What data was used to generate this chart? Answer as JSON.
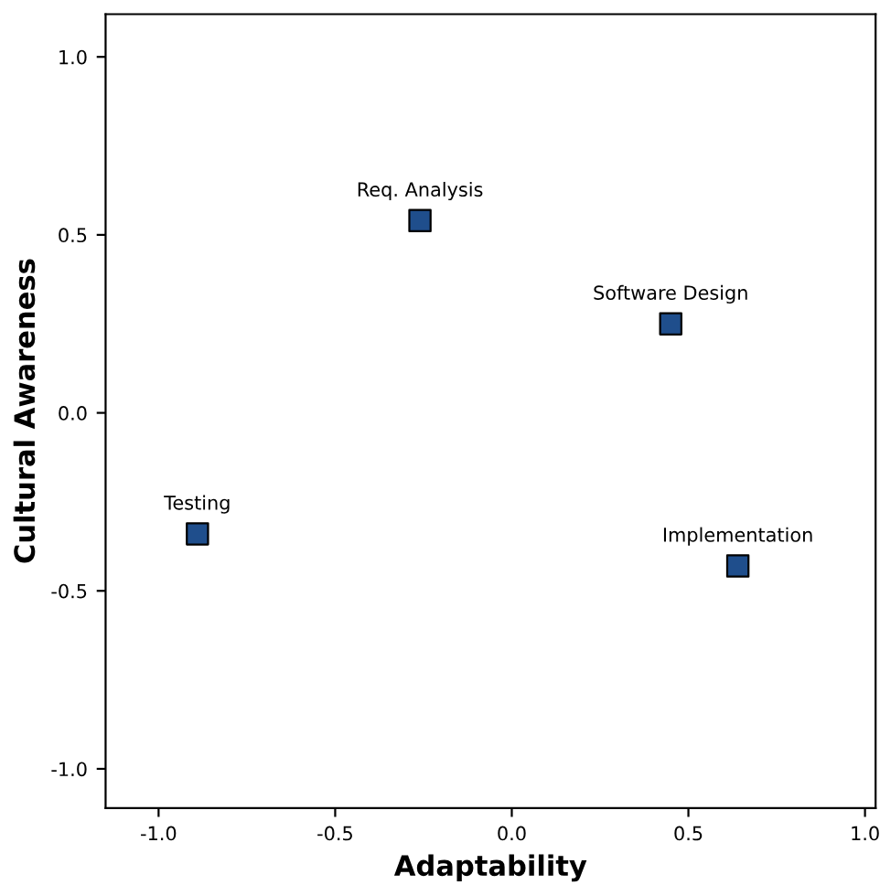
{
  "chart_data": {
    "type": "scatter",
    "xlabel": "Adaptability",
    "ylabel": "Cultural Awareness",
    "x": [
      -0.26,
      0.45,
      -0.89,
      0.64
    ],
    "series": [
      {
        "color": "#1f4e8c",
        "values": [
          0.54,
          0.25,
          -0.34,
          -0.43
        ]
      }
    ],
    "annotations": [
      {
        "text": "Req. Analysis",
        "x": -0.26,
        "y": 0.54
      },
      {
        "text": "Software Design",
        "x": 0.45,
        "y": 0.25
      },
      {
        "text": "Testing",
        "x": -0.89,
        "y": -0.34
      },
      {
        "text": "Implementation",
        "x": 0.64,
        "y": -0.43
      }
    ],
    "xlim": [
      -1.15,
      1.03
    ],
    "ylim": [
      -1.11,
      1.12
    ],
    "xticks": [
      {
        "value": -1.0,
        "label": "-1.0"
      },
      {
        "value": -0.5,
        "label": "-0.5"
      },
      {
        "value": 0.0,
        "label": "0.0"
      },
      {
        "value": 0.5,
        "label": "0.5"
      },
      {
        "value": 1.0,
        "label": "1.0"
      }
    ],
    "yticks": [
      {
        "value": -1.0,
        "label": "-1.0"
      },
      {
        "value": -0.5,
        "label": "-0.5"
      },
      {
        "value": 0.0,
        "label": "0.0"
      },
      {
        "value": 0.5,
        "label": "0.5"
      },
      {
        "value": 1.0,
        "label": "1.0"
      }
    ],
    "marker": "square",
    "grid": false,
    "legend": false
  }
}
